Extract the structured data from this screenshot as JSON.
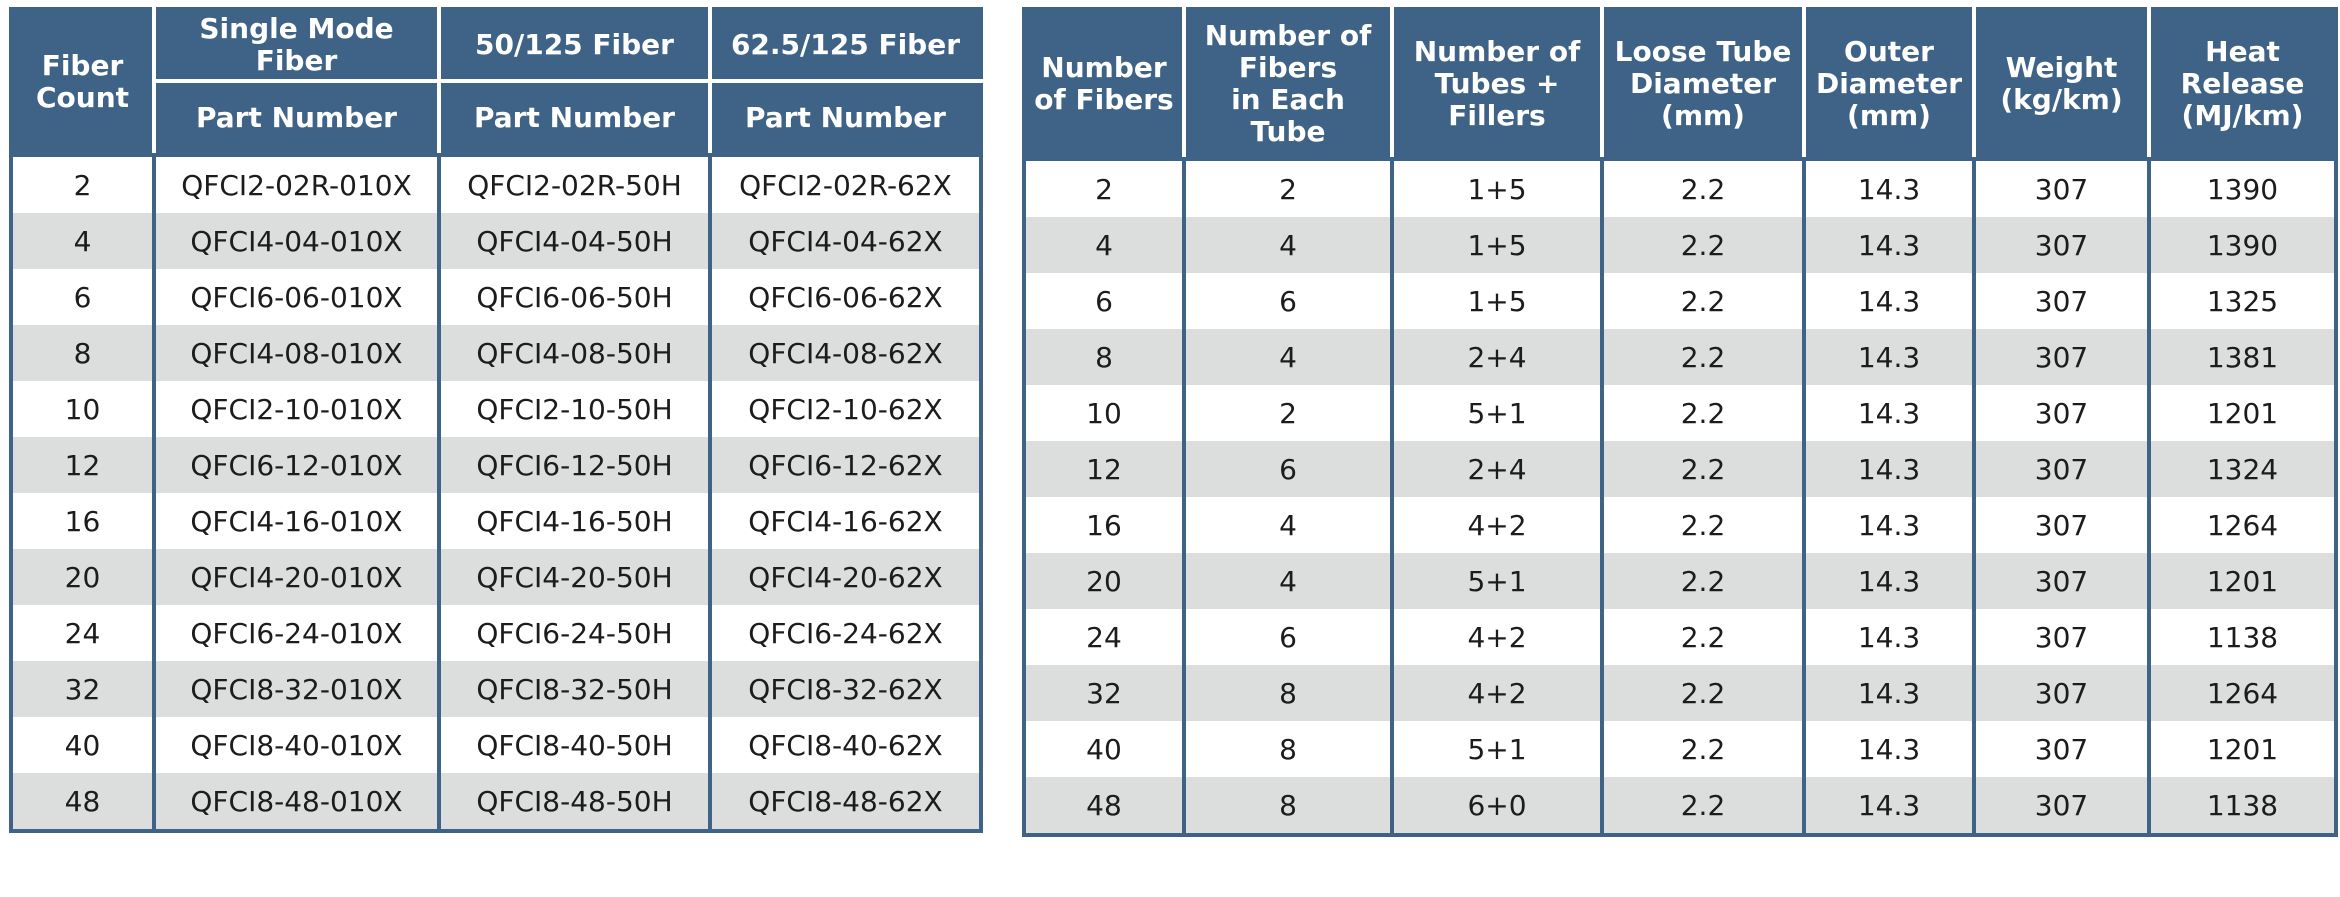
{
  "left_table": {
    "headers": {
      "fiber_count": "Fiber\nCount",
      "groups": [
        "Single Mode Fiber",
        "50/125 Fiber",
        "62.5/125 Fiber"
      ],
      "sub": [
        "Part Number",
        "Part Number",
        "Part Number"
      ]
    },
    "rows": [
      [
        "2",
        "QFCI2-02R-010X",
        "QFCI2-02R-50H",
        "QFCI2-02R-62X"
      ],
      [
        "4",
        "QFCI4-04-010X",
        "QFCI4-04-50H",
        "QFCI4-04-62X"
      ],
      [
        "6",
        "QFCI6-06-010X",
        "QFCI6-06-50H",
        "QFCI6-06-62X"
      ],
      [
        "8",
        "QFCI4-08-010X",
        "QFCI4-08-50H",
        "QFCI4-08-62X"
      ],
      [
        "10",
        "QFCI2-10-010X",
        "QFCI2-10-50H",
        "QFCI2-10-62X"
      ],
      [
        "12",
        "QFCI6-12-010X",
        "QFCI6-12-50H",
        "QFCI6-12-62X"
      ],
      [
        "16",
        "QFCI4-16-010X",
        "QFCI4-16-50H",
        "QFCI4-16-62X"
      ],
      [
        "20",
        "QFCI4-20-010X",
        "QFCI4-20-50H",
        "QFCI4-20-62X"
      ],
      [
        "24",
        "QFCI6-24-010X",
        "QFCI6-24-50H",
        "QFCI6-24-62X"
      ],
      [
        "32",
        "QFCI8-32-010X",
        "QFCI8-32-50H",
        "QFCI8-32-62X"
      ],
      [
        "40",
        "QFCI8-40-010X",
        "QFCI8-40-50H",
        "QFCI8-40-62X"
      ],
      [
        "48",
        "QFCI8-48-010X",
        "QFCI8-48-50H",
        "QFCI8-48-62X"
      ]
    ]
  },
  "right_table": {
    "headers": [
      "Number\nof Fibers",
      "Number of\nFibers\nin Each\nTube",
      "Number of\nTubes +\nFillers",
      "Loose Tube\nDiameter\n(mm)",
      "Outer\nDiameter\n(mm)",
      "Weight\n(kg/km)",
      "Heat\nRelease\n(MJ/km)"
    ],
    "rows": [
      [
        "2",
        "2",
        "1+5",
        "2.2",
        "14.3",
        "307",
        "1390"
      ],
      [
        "4",
        "4",
        "1+5",
        "2.2",
        "14.3",
        "307",
        "1390"
      ],
      [
        "6",
        "6",
        "1+5",
        "2.2",
        "14.3",
        "307",
        "1325"
      ],
      [
        "8",
        "4",
        "2+4",
        "2.2",
        "14.3",
        "307",
        "1381"
      ],
      [
        "10",
        "2",
        "5+1",
        "2.2",
        "14.3",
        "307",
        "1201"
      ],
      [
        "12",
        "6",
        "2+4",
        "2.2",
        "14.3",
        "307",
        "1324"
      ],
      [
        "16",
        "4",
        "4+2",
        "2.2",
        "14.3",
        "307",
        "1264"
      ],
      [
        "20",
        "4",
        "5+1",
        "2.2",
        "14.3",
        "307",
        "1201"
      ],
      [
        "24",
        "6",
        "4+2",
        "2.2",
        "14.3",
        "307",
        "1138"
      ],
      [
        "32",
        "8",
        "4+2",
        "2.2",
        "14.3",
        "307",
        "1264"
      ],
      [
        "40",
        "8",
        "5+1",
        "2.2",
        "14.3",
        "307",
        "1201"
      ],
      [
        "48",
        "8",
        "6+0",
        "2.2",
        "14.3",
        "307",
        "1138"
      ]
    ]
  },
  "colors": {
    "header_bg": "#3f6387",
    "header_text": "#ffffff",
    "row_alt": "#dcdddd",
    "row": "#ffffff"
  }
}
